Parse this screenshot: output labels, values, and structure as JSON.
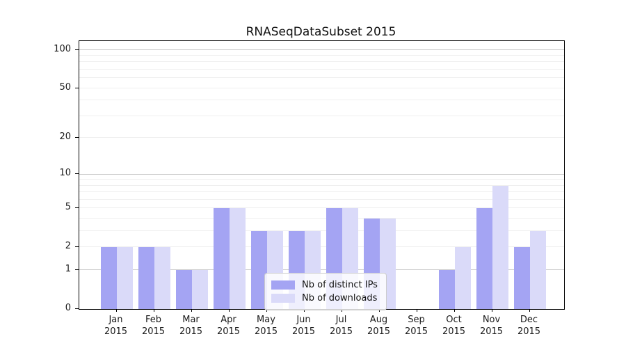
{
  "title": "RNASeqDataSubset 2015",
  "chart_data": {
    "type": "bar",
    "title": "RNASeqDataSubset 2015",
    "categories": [
      "Jan 2015",
      "Feb 2015",
      "Mar 2015",
      "Apr 2015",
      "May 2015",
      "Jun 2015",
      "Jul 2015",
      "Aug 2015",
      "Sep 2015",
      "Oct 2015",
      "Nov 2015",
      "Dec 2015"
    ],
    "series": [
      {
        "name": "Nb of distinct IPs",
        "color": "#a4a4f3",
        "values": [
          2,
          2,
          1,
          5,
          3,
          3,
          5,
          4,
          0,
          1,
          5,
          2
        ]
      },
      {
        "name": "Nb of downloads",
        "color": "#dadaf9",
        "values": [
          2,
          2,
          1,
          5,
          3,
          3,
          5,
          4,
          0,
          2,
          8,
          3
        ]
      }
    ],
    "xlabel": "",
    "ylabel": "",
    "yscale": "log1p",
    "ylim": [
      0,
      117
    ],
    "y_ticks": [
      0,
      1,
      2,
      5,
      10,
      20,
      50,
      100
    ],
    "grid_major_lines": [
      1,
      10,
      100
    ],
    "grid_minor_lines": [
      2,
      3,
      4,
      5,
      6,
      7,
      8,
      9,
      20,
      30,
      40,
      50,
      60,
      70,
      80,
      90
    ],
    "grid": "on",
    "legend_position": "inside lower center"
  },
  "colors": {
    "bar_ips": "#a4a4f3",
    "bar_downloads": "#dadaf9",
    "grid_major": "#c9c9c9",
    "grid_minor": "#efefef",
    "spine": "#000000",
    "text": "#1a1a1a"
  }
}
